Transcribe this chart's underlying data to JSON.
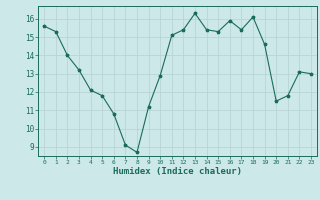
{
  "title": "",
  "xlabel": "Humidex (Indice chaleur)",
  "ylabel": "",
  "x": [
    0,
    1,
    2,
    3,
    4,
    5,
    6,
    7,
    8,
    9,
    10,
    11,
    12,
    13,
    14,
    15,
    16,
    17,
    18,
    19,
    20,
    21,
    22,
    23
  ],
  "y": [
    15.6,
    15.3,
    14.0,
    13.2,
    12.1,
    11.8,
    10.8,
    9.1,
    8.7,
    11.2,
    12.9,
    15.1,
    15.4,
    16.3,
    15.4,
    15.3,
    15.9,
    15.4,
    16.1,
    14.6,
    11.5,
    11.8,
    13.1,
    13.0
  ],
  "line_color": "#1a6b5a",
  "marker": "*",
  "marker_size": 2.5,
  "bg_color": "#cde8e8",
  "grid_color": "#b8d4d4",
  "tick_color": "#1a6b5a",
  "label_color": "#1a6b5a",
  "ylim": [
    8.5,
    16.7
  ],
  "yticks": [
    9,
    10,
    11,
    12,
    13,
    14,
    15,
    16
  ],
  "xlim": [
    -0.5,
    23.5
  ],
  "xticks": [
    0,
    1,
    2,
    3,
    4,
    5,
    6,
    7,
    8,
    9,
    10,
    11,
    12,
    13,
    14,
    15,
    16,
    17,
    18,
    19,
    20,
    21,
    22,
    23
  ]
}
